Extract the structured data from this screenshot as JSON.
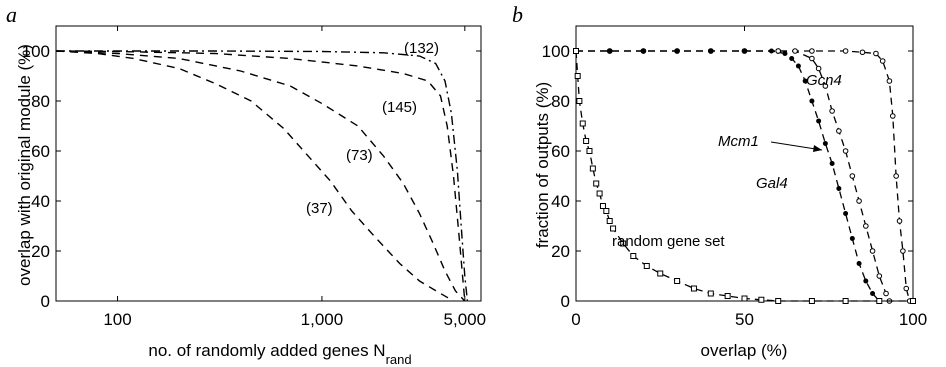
{
  "chart_data": [
    {
      "panel_label": "a",
      "type": "line",
      "xlabel": "no. of randomly added genes N",
      "xlabel_sub": "rand",
      "ylabel": "overlap with original module (%)",
      "xscale": "log",
      "xlim": [
        50,
        6000
      ],
      "ylim": [
        0,
        110
      ],
      "xticks": [
        100,
        1000,
        5000
      ],
      "xtick_labels": [
        "100",
        "1,000",
        "5,000"
      ],
      "yticks": [
        0,
        20,
        40,
        60,
        80,
        100
      ],
      "ytick_labels": [
        "0",
        "20",
        "40",
        "60",
        "80",
        "100"
      ],
      "grid": false,
      "series": [
        {
          "name": "(132)",
          "style": "dashdot",
          "points": [
            [
              50,
              100
            ],
            [
              100,
              100
            ],
            [
              300,
              100
            ],
            [
              1000,
              99.8
            ],
            [
              2000,
              99.3
            ],
            [
              3000,
              98
            ],
            [
              3600,
              95
            ],
            [
              4000,
              88
            ],
            [
              4300,
              75
            ],
            [
              4600,
              52
            ],
            [
              4800,
              30
            ],
            [
              5000,
              10
            ],
            [
              5150,
              0
            ]
          ]
        },
        {
          "name": "(145)",
          "style": "dashed",
          "points": [
            [
              50,
              100
            ],
            [
              100,
              99.8
            ],
            [
              300,
              99
            ],
            [
              700,
              97
            ],
            [
              1500,
              94
            ],
            [
              2500,
              91
            ],
            [
              3300,
              88
            ],
            [
              3800,
              82
            ],
            [
              4100,
              70
            ],
            [
              4400,
              50
            ],
            [
              4700,
              25
            ],
            [
              4900,
              8
            ],
            [
              5000,
              0
            ]
          ]
        },
        {
          "name": "(73)",
          "style": "dashed",
          "points": [
            [
              50,
              100
            ],
            [
              100,
              99
            ],
            [
              200,
              97
            ],
            [
              400,
              92
            ],
            [
              700,
              86
            ],
            [
              1000,
              79
            ],
            [
              1500,
              70
            ],
            [
              2000,
              58
            ],
            [
              2500,
              47
            ],
            [
              3000,
              35
            ],
            [
              3500,
              23
            ],
            [
              4000,
              12
            ],
            [
              4500,
              4
            ],
            [
              5000,
              0
            ]
          ]
        },
        {
          "name": "(37)",
          "style": "dashed",
          "points": [
            [
              50,
              100
            ],
            [
              80,
              99
            ],
            [
              120,
              97
            ],
            [
              200,
              93
            ],
            [
              300,
              87
            ],
            [
              450,
              80
            ],
            [
              650,
              69
            ],
            [
              900,
              56
            ],
            [
              1100,
              48
            ],
            [
              1400,
              36
            ],
            [
              1800,
              26
            ],
            [
              2400,
              15
            ],
            [
              3000,
              8
            ],
            [
              3800,
              3
            ],
            [
              4400,
              0
            ]
          ]
        }
      ],
      "annotations": [
        "(132)",
        "(145)",
        "(73)",
        "(37)"
      ]
    },
    {
      "panel_label": "b",
      "type": "line",
      "xlabel": "overlap (%)",
      "ylabel": "fraction of outputs (%)",
      "xlim": [
        0,
        100
      ],
      "ylim": [
        0,
        110
      ],
      "xticks": [
        0,
        50,
        100
      ],
      "xtick_labels": [
        "0",
        "50",
        "100"
      ],
      "yticks": [
        0,
        20,
        40,
        60,
        80,
        100
      ],
      "ytick_labels": [
        "0",
        "20",
        "40",
        "60",
        "80",
        "100"
      ],
      "grid": false,
      "series": [
        {
          "name": "Gcn4",
          "marker": "circle",
          "points": [
            [
              0,
              100
            ],
            [
              10,
              100
            ],
            [
              20,
              100
            ],
            [
              30,
              100
            ],
            [
              40,
              100
            ],
            [
              50,
              100
            ],
            [
              60,
              100
            ],
            [
              70,
              100
            ],
            [
              80,
              100
            ],
            [
              85,
              99.5
            ],
            [
              89,
              99
            ],
            [
              91,
              96
            ],
            [
              93,
              88
            ],
            [
              94,
              74
            ],
            [
              95,
              50
            ],
            [
              96,
              32
            ],
            [
              97,
              20
            ],
            [
              98,
              5
            ],
            [
              99,
              0
            ],
            [
              100,
              0
            ]
          ]
        },
        {
          "name": "Mcm1",
          "marker": "circle",
          "points": [
            [
              0,
              100
            ],
            [
              10,
              100
            ],
            [
              20,
              100
            ],
            [
              30,
              100
            ],
            [
              40,
              100
            ],
            [
              50,
              100
            ],
            [
              60,
              100
            ],
            [
              65,
              100
            ],
            [
              70,
              97
            ],
            [
              72,
              93
            ],
            [
              74,
              86
            ],
            [
              76,
              76
            ],
            [
              78,
              68
            ],
            [
              80,
              60
            ],
            [
              82,
              50
            ],
            [
              84,
              40
            ],
            [
              86,
              30
            ],
            [
              88,
              20
            ],
            [
              90,
              10
            ],
            [
              92,
              3
            ],
            [
              93,
              0
            ]
          ]
        },
        {
          "name": "Gal4",
          "marker": "dot",
          "points": [
            [
              0,
              100
            ],
            [
              10,
              100
            ],
            [
              20,
              100
            ],
            [
              30,
              100
            ],
            [
              40,
              100
            ],
            [
              50,
              100
            ],
            [
              58,
              100
            ],
            [
              62,
              99
            ],
            [
              64,
              97
            ],
            [
              66,
              94
            ],
            [
              68,
              88
            ],
            [
              70,
              80
            ],
            [
              72,
              72
            ],
            [
              74,
              63
            ],
            [
              76,
              55
            ],
            [
              78,
              45
            ],
            [
              80,
              35
            ],
            [
              82,
              25
            ],
            [
              84,
              15
            ],
            [
              86,
              8
            ],
            [
              88,
              3
            ],
            [
              90,
              0
            ]
          ]
        },
        {
          "name": "random gene set",
          "marker": "square",
          "points": [
            [
              0,
              100
            ],
            [
              0.5,
              90
            ],
            [
              1,
              80
            ],
            [
              2,
              71
            ],
            [
              3,
              64
            ],
            [
              4,
              60
            ],
            [
              5,
              53
            ],
            [
              6,
              47
            ],
            [
              7,
              43
            ],
            [
              8,
              38
            ],
            [
              9,
              36
            ],
            [
              10,
              32
            ],
            [
              11,
              29
            ],
            [
              14,
              23
            ],
            [
              17,
              18
            ],
            [
              21,
              14
            ],
            [
              25,
              11
            ],
            [
              30,
              8
            ],
            [
              35,
              5
            ],
            [
              40,
              3
            ],
            [
              45,
              2
            ],
            [
              50,
              1
            ],
            [
              55,
              0.5
            ],
            [
              60,
              0
            ],
            [
              70,
              0
            ],
            [
              80,
              0
            ],
            [
              90,
              0
            ],
            [
              100,
              0
            ]
          ]
        }
      ],
      "annotations": [
        "Gcn4",
        "Mcm1",
        "Gal4",
        "random gene set"
      ]
    }
  ]
}
